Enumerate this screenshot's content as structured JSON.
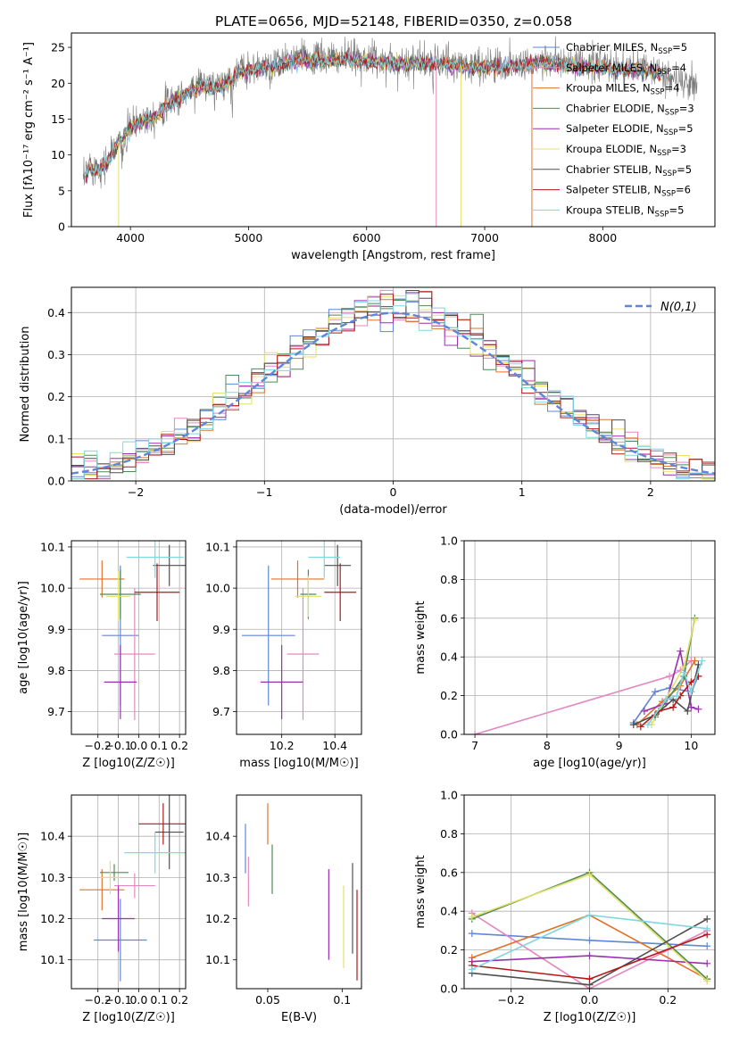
{
  "figure": {
    "title": "PLATE=0656, MJD=52148, FIBERID=0350, z=0.058"
  },
  "colors": {
    "series": [
      "#5f86d8",
      "#e587c1",
      "#e0732b",
      "#4d8b58",
      "#9a2fb0",
      "#e3df6a",
      "#4f4f4f",
      "#b01818",
      "#7fd7df"
    ],
    "spectrum": "#7a7a7a",
    "grid": "#b0b0b0",
    "normal_curve": "#5f86d8"
  },
  "chart_data": [
    {
      "id": "spectrum",
      "type": "line",
      "title": "PLATE=0656, MJD=52148, FIBERID=0350, z=0.058",
      "xlabel": "wavelength [Angstrom, rest frame]",
      "ylabel": "Flux [fλ10⁻¹⁷ erg cm⁻² s⁻¹ A⁻¹]",
      "xlim": [
        3500,
        8950
      ],
      "ylim": [
        0,
        27
      ],
      "xticks": [
        4000,
        5000,
        6000,
        7000,
        8000
      ],
      "yticks": [
        0,
        5,
        10,
        15,
        20,
        25
      ],
      "grid": false,
      "legend_position": "top-right",
      "continuum_knots": {
        "x": [
          3600,
          3650,
          3700,
          3800,
          3900,
          4000,
          4100,
          4200,
          4300,
          4400,
          4500,
          4600,
          4700,
          4800,
          4900,
          5000,
          5200,
          5400,
          5600,
          5800,
          6000,
          6200,
          6400,
          6600,
          6800,
          7000,
          7200,
          7400,
          7600,
          7800,
          8000,
          8200,
          8400,
          8600,
          8800
        ],
        "y": [
          6,
          9,
          8,
          9,
          12,
          14,
          15,
          15.5,
          17,
          18,
          19,
          20,
          19.5,
          20,
          21.5,
          22,
          22.5,
          23.5,
          23.5,
          23.5,
          23.5,
          23,
          23,
          23,
          22.5,
          22.5,
          22.5,
          23,
          23,
          22.5,
          22.5,
          22,
          22,
          20.5,
          19.5
        ]
      },
      "legend": [
        "Chabrier MILES, N_SSP=5",
        "Salpeter MILES, N_SSP=4",
        "Kroupa MILES, N_SSP=4",
        "Chabrier ELODIE, N_SSP=3",
        "Salpeter ELODIE, N_SSP=5",
        "Kroupa ELODIE, N_SSP=3",
        "Chabrier STELIB, N_SSP=5",
        "Salpeter STELIB, N_SSP=6",
        "Kroupa STELIB, N_SSP=5"
      ],
      "legend_display": [
        {
          "pre": "Chabrier MILES, N",
          "sub": "SSP",
          "post": "=5"
        },
        {
          "pre": "Salpeter MILES, N",
          "sub": "SSP",
          "post": "=4"
        },
        {
          "pre": "Kroupa MILES, N",
          "sub": "SSP",
          "post": "=4"
        },
        {
          "pre": "Chabrier ELODIE, N",
          "sub": "SSP",
          "post": "=3"
        },
        {
          "pre": "Salpeter ELODIE, N",
          "sub": "SSP",
          "post": "=5"
        },
        {
          "pre": "Kroupa ELODIE, N",
          "sub": "SSP",
          "post": "=3"
        },
        {
          "pre": "Chabrier STELIB, N",
          "sub": "SSP",
          "post": "=5"
        },
        {
          "pre": "Salpeter STELIB, N",
          "sub": "SSP",
          "post": "=6"
        },
        {
          "pre": "Kroupa STELIB, N",
          "sub": "SSP",
          "post": "=5"
        }
      ]
    },
    {
      "id": "residuals",
      "type": "line",
      "xlabel": "(data-model)/error",
      "ylabel": "Normed distribution",
      "xlim": [
        -2.5,
        2.5
      ],
      "ylim": [
        0,
        0.46
      ],
      "xticks": [
        -2,
        -1,
        0,
        1,
        2
      ],
      "xtick_labels": [
        "−2",
        "−1",
        "0",
        "1",
        "2"
      ],
      "yticks": [
        0.0,
        0.1,
        0.2,
        0.3,
        0.4
      ],
      "grid": true,
      "legend": [
        "N(0,1)"
      ],
      "legend_position": "top-right",
      "bin_width": 0.1
    },
    {
      "id": "age-vs-Z",
      "type": "scatter",
      "xlabel": "Z [log10(Z/Z☉)]",
      "ylabel": "age [log10(age/yr)]",
      "xlim": [
        -0.33,
        0.23
      ],
      "ylim": [
        9.645,
        10.115
      ],
      "xticks": [
        -0.2,
        -0.1,
        0.0,
        0.1,
        0.2
      ],
      "xtick_labels": [
        "−0.2",
        "−0.1",
        "0.0",
        "0.1",
        "0.2"
      ],
      "yticks": [
        9.7,
        9.8,
        9.9,
        10.0,
        10.1
      ],
      "grid": true,
      "points": [
        {
          "x": -0.09,
          "y": 9.885,
          "xerr": 0.09,
          "yerr": 0.17
        },
        {
          "x": -0.02,
          "y": 9.84,
          "xerr": 0.1,
          "yerr": 0.16
        },
        {
          "x": -0.18,
          "y": 10.022,
          "xerr": 0.11,
          "yerr": 0.045
        },
        {
          "x": -0.09,
          "y": 9.985,
          "xerr": 0.1,
          "yerr": 0.06
        },
        {
          "x": -0.09,
          "y": 9.772,
          "xerr": 0.08,
          "yerr": 0.09
        },
        {
          "x": -0.1,
          "y": 9.98,
          "xerr": 0.06,
          "yerr": 0.06
        },
        {
          "x": 0.15,
          "y": 10.055,
          "xerr": 0.08,
          "yerr": 0.05
        },
        {
          "x": 0.09,
          "y": 9.99,
          "xerr": 0.11,
          "yerr": 0.07
        },
        {
          "x": 0.08,
          "y": 10.075,
          "xerr": 0.14,
          "yerr": 0.05
        }
      ]
    },
    {
      "id": "age-vs-mass",
      "type": "scatter",
      "xlabel": "mass [log10(M/M☉)]",
      "ylabel": "",
      "xlim": [
        10.03,
        10.5
      ],
      "ylim": [
        9.645,
        10.115
      ],
      "xticks": [
        10.2,
        10.4
      ],
      "yticks": [
        9.7,
        9.8,
        9.9,
        10.0,
        10.1
      ],
      "grid": true,
      "points": [
        {
          "x": 10.15,
          "y": 9.885,
          "xerr": 0.1,
          "yerr": 0.17
        },
        {
          "x": 10.28,
          "y": 9.84,
          "xerr": 0.06,
          "yerr": 0.16
        },
        {
          "x": 10.26,
          "y": 10.022,
          "xerr": 0.1,
          "yerr": 0.045
        },
        {
          "x": 10.3,
          "y": 9.985,
          "xerr": 0.03,
          "yerr": 0.06
        },
        {
          "x": 10.2,
          "y": 9.772,
          "xerr": 0.08,
          "yerr": 0.09
        },
        {
          "x": 10.3,
          "y": 9.98,
          "xerr": 0.05,
          "yerr": 0.05
        },
        {
          "x": 10.41,
          "y": 10.055,
          "xerr": 0.05,
          "yerr": 0.05
        },
        {
          "x": 10.42,
          "y": 9.99,
          "xerr": 0.06,
          "yerr": 0.07
        },
        {
          "x": 10.36,
          "y": 10.075,
          "xerr": 0.06,
          "yerr": 0.05
        }
      ]
    },
    {
      "id": "weight-vs-age",
      "type": "line",
      "xlabel": "age [log10(age/yr)]",
      "ylabel": "mass weight",
      "xlim": [
        6.85,
        10.33
      ],
      "ylim": [
        0,
        1
      ],
      "xticks": [
        7,
        8,
        9,
        10
      ],
      "yticks": [
        0.0,
        0.2,
        0.4,
        0.6,
        0.8,
        1.0
      ],
      "grid": true,
      "series": [
        {
          "x": [
            9.2,
            9.5,
            9.7,
            10.0,
            10.1
          ],
          "y": [
            0.06,
            0.22,
            0.24,
            0.22,
            0.3
          ]
        },
        {
          "x": [
            7.0,
            9.7,
            9.85,
            10.0
          ],
          "y": [
            0.0,
            0.3,
            0.33,
            0.38
          ]
        },
        {
          "x": [
            9.25,
            9.6,
            9.85,
            10.05
          ],
          "y": [
            0.05,
            0.17,
            0.25,
            0.38
          ]
        },
        {
          "x": [
            9.5,
            9.9,
            10.05
          ],
          "y": [
            0.09,
            0.3,
            0.6
          ]
        },
        {
          "x": [
            9.35,
            9.65,
            9.85,
            10.0,
            10.1
          ],
          "y": [
            0.12,
            0.16,
            0.43,
            0.14,
            0.13
          ]
        },
        {
          "x": [
            9.45,
            9.9,
            10.05
          ],
          "y": [
            0.05,
            0.35,
            0.59
          ]
        },
        {
          "x": [
            9.2,
            9.5,
            9.75,
            9.95,
            10.1
          ],
          "y": [
            0.05,
            0.1,
            0.18,
            0.12,
            0.36
          ]
        },
        {
          "x": [
            9.3,
            9.55,
            9.75,
            9.85,
            10.0,
            10.1
          ],
          "y": [
            0.04,
            0.12,
            0.14,
            0.2,
            0.27,
            0.3
          ]
        },
        {
          "x": [
            9.4,
            9.65,
            9.8,
            9.9,
            10.0,
            10.15
          ],
          "y": [
            0.05,
            0.18,
            0.2,
            0.32,
            0.22,
            0.38
          ]
        }
      ]
    },
    {
      "id": "mass-vs-Z",
      "type": "scatter",
      "xlabel": "Z [log10(Z/Z☉)]",
      "ylabel": "mass [log10(M/M☉)]",
      "xlim": [
        -0.33,
        0.23
      ],
      "ylim": [
        10.03,
        10.5
      ],
      "xticks": [
        -0.2,
        -0.1,
        0.0,
        0.1,
        0.2
      ],
      "xtick_labels": [
        "−0.2",
        "−0.1",
        "0.0",
        "0.1",
        "0.2"
      ],
      "yticks": [
        10.1,
        10.2,
        10.3,
        10.4
      ],
      "grid": true,
      "points": [
        {
          "x": -0.09,
          "y": 10.148,
          "xerr": 0.13,
          "yerr": 0.1
        },
        {
          "x": -0.02,
          "y": 10.28,
          "xerr": 0.1,
          "yerr": 0.03
        },
        {
          "x": -0.18,
          "y": 10.27,
          "xerr": 0.11,
          "yerr": 0.05
        },
        {
          "x": -0.12,
          "y": 10.312,
          "xerr": 0.07,
          "yerr": 0.02
        },
        {
          "x": -0.1,
          "y": 10.2,
          "xerr": 0.08,
          "yerr": 0.08
        },
        {
          "x": -0.14,
          "y": 10.3,
          "xerr": 0.05,
          "yerr": 0.04
        },
        {
          "x": 0.15,
          "y": 10.41,
          "xerr": 0.07,
          "yerr": 0.09
        },
        {
          "x": 0.12,
          "y": 10.43,
          "xerr": 0.12,
          "yerr": 0.05
        },
        {
          "x": 0.08,
          "y": 10.36,
          "xerr": 0.15,
          "yerr": 0.05
        }
      ]
    },
    {
      "id": "mass-vs-EBV",
      "type": "scatter",
      "xlabel": "E(B-V)",
      "ylabel": "",
      "xlim": [
        0.029,
        0.113
      ],
      "ylim": [
        10.03,
        10.5
      ],
      "xticks": [
        0.05,
        0.1
      ],
      "yticks": [
        10.1,
        10.2,
        10.3,
        10.4
      ],
      "grid": false,
      "points": [
        {
          "x": 0.035,
          "y": 10.37,
          "xerr": 0,
          "yerr": 0.06
        },
        {
          "x": 0.037,
          "y": 10.29,
          "xerr": 0,
          "yerr": 0.06
        },
        {
          "x": 0.05,
          "y": 10.43,
          "xerr": 0,
          "yerr": 0.05
        },
        {
          "x": 0.053,
          "y": 10.32,
          "xerr": 0,
          "yerr": 0.06
        },
        {
          "x": 0.091,
          "y": 10.21,
          "xerr": 0,
          "yerr": 0.11
        },
        {
          "x": 0.101,
          "y": 10.18,
          "xerr": 0,
          "yerr": 0.1
        },
        {
          "x": 0.107,
          "y": 10.225,
          "xerr": 0,
          "yerr": 0.11
        },
        {
          "x": 0.11,
          "y": 10.16,
          "xerr": 0,
          "yerr": 0.11
        }
      ]
    },
    {
      "id": "weight-vs-Z",
      "type": "line",
      "xlabel": "Z [log10(Z/Z☉)]",
      "ylabel": "mass weight",
      "xlim": [
        -0.32,
        0.32
      ],
      "ylim": [
        0,
        1
      ],
      "xticks": [
        -0.2,
        0.0,
        0.2
      ],
      "xtick_labels": [
        "−0.2",
        "0.0",
        "0.2"
      ],
      "yticks": [
        0.0,
        0.2,
        0.4,
        0.6,
        0.8,
        1.0
      ],
      "grid": true,
      "series": [
        {
          "x": [
            -0.3,
            0.0,
            0.3
          ],
          "y": [
            0.285,
            0.25,
            0.22
          ]
        },
        {
          "x": [
            -0.3,
            0.0,
            0.3
          ],
          "y": [
            0.39,
            0.0,
            0.3
          ]
        },
        {
          "x": [
            -0.3,
            0.0,
            0.3
          ],
          "y": [
            0.16,
            0.38,
            0.05
          ]
        },
        {
          "x": [
            -0.3,
            0.0,
            0.3
          ],
          "y": [
            0.36,
            0.6,
            0.05
          ]
        },
        {
          "x": [
            -0.3,
            0.0,
            0.3
          ],
          "y": [
            0.14,
            0.17,
            0.13
          ]
        },
        {
          "x": [
            -0.3,
            0.0,
            0.3
          ],
          "y": [
            0.37,
            0.59,
            0.04
          ]
        },
        {
          "x": [
            -0.3,
            0.0,
            0.3
          ],
          "y": [
            0.08,
            0.02,
            0.36
          ]
        },
        {
          "x": [
            -0.3,
            0.0,
            0.3
          ],
          "y": [
            0.12,
            0.05,
            0.28
          ]
        },
        {
          "x": [
            -0.3,
            0.0,
            0.3
          ],
          "y": [
            0.1,
            0.38,
            0.31
          ]
        }
      ]
    }
  ]
}
